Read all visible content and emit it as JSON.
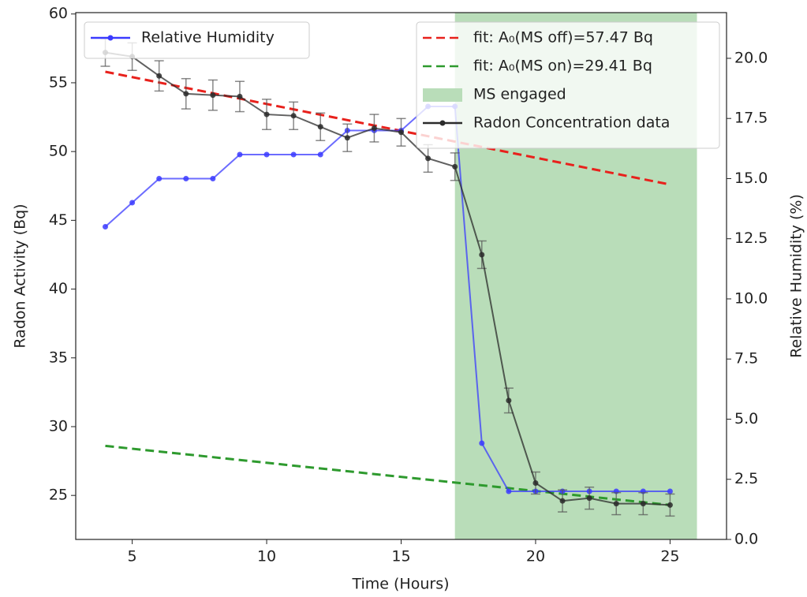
{
  "chart_data": {
    "type": "line",
    "xlabel": "Time (Hours)",
    "ylabel": "Radon Activity (Bq)",
    "y2label": "Relative Humidity (%)",
    "y2color": "#2a2aee",
    "xlim": [
      2.9,
      27.1
    ],
    "xticks": [
      5,
      10,
      15,
      20,
      25
    ],
    "ylim": [
      21.8,
      60.1
    ],
    "yticks": [
      25,
      30,
      35,
      40,
      45,
      50,
      55,
      60
    ],
    "y2lim": [
      0,
      21.9
    ],
    "y2ticks": [
      {
        "value": 0,
        "label": "0.0"
      },
      2.5,
      {
        "value": 5,
        "label": "5.0"
      },
      7.5,
      {
        "value": 10,
        "label": "10.0"
      },
      12.5,
      {
        "value": 15,
        "label": "15.0"
      },
      17.5,
      {
        "value": 20,
        "label": "20.0"
      }
    ],
    "span": {
      "name": "MS engaged",
      "color": "#b9ddb9",
      "x": [
        17,
        26
      ],
      "legend": "upper right"
    },
    "series": [
      {
        "name": "fit: A₀(MS off)=57.47 Bq",
        "color": "#e8211c",
        "style": "dashed",
        "x": [
          4,
          25
        ],
        "values": [
          55.8,
          47.6
        ],
        "legend": "upper right"
      },
      {
        "name": "fit: A₀(MS on)=29.41 Bq",
        "color": "#2e9a2e",
        "style": "dashed",
        "x": [
          4,
          25
        ],
        "values": [
          28.6,
          24.3
        ],
        "legend": "upper right"
      },
      {
        "name": "Relative Humidity",
        "color": "#3b3bff",
        "style": "marker",
        "axis": "y2",
        "legend": "upper left",
        "x": [
          4,
          5,
          6,
          7,
          8,
          9,
          10,
          11,
          12,
          13,
          14,
          15,
          16,
          17,
          18,
          19,
          20,
          21,
          22,
          23,
          24,
          25
        ],
        "values": [
          13,
          14,
          15,
          15,
          15,
          16,
          16,
          16,
          16,
          17,
          17,
          17,
          18,
          18,
          4,
          2,
          2,
          2,
          2,
          2,
          2,
          2
        ]
      },
      {
        "name": "Radon Concentration data",
        "color": "#2b2b2b",
        "style": "marker",
        "legend": "upper right",
        "x": [
          4,
          5,
          6,
          7,
          8,
          9,
          10,
          11,
          12,
          13,
          14,
          15,
          16,
          17,
          18,
          19,
          20,
          21,
          22,
          23,
          24,
          25
        ],
        "values": [
          57.2,
          56.9,
          55.5,
          54.2,
          54.1,
          54.0,
          52.7,
          52.6,
          51.8,
          51.0,
          51.7,
          51.4,
          49.5,
          48.9,
          42.5,
          31.9,
          25.9,
          24.6,
          24.8,
          24.4,
          24.4,
          24.3
        ],
        "errors": [
          1.0,
          1.0,
          1.1,
          1.1,
          1.1,
          1.1,
          1.1,
          1.0,
          1.0,
          1.0,
          1.0,
          1.0,
          1.0,
          1.0,
          1.0,
          0.9,
          0.8,
          0.8,
          0.8,
          0.8,
          0.8,
          0.8
        ]
      }
    ]
  }
}
